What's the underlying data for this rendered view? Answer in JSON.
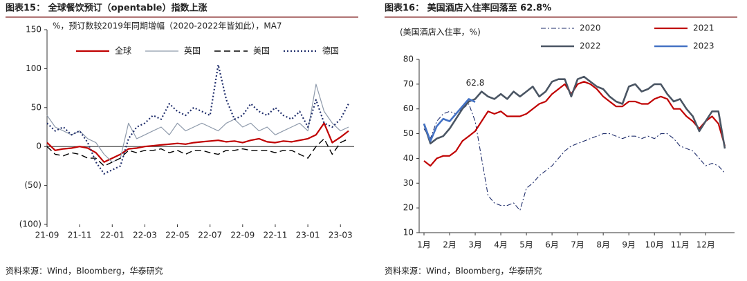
{
  "chart_data": [
    {
      "type": "line",
      "title": "图表15： 全球餐饮预订（opentable）指数上涨",
      "annotation": "%，预订数较2019年同期增幅（2020-2022年皆如此），MA7",
      "source": "资料来源：Wind，Bloomberg，华泰研究",
      "categories": [
        "21-09",
        null,
        null,
        null,
        "21-11",
        null,
        null,
        null,
        "22-01",
        null,
        null,
        null,
        "22-03",
        null,
        null,
        null,
        "22-05",
        null,
        null,
        null,
        "22-07",
        null,
        null,
        null,
        "22-09",
        null,
        null,
        null,
        "22-11",
        null,
        null,
        null,
        "23-01",
        null,
        null,
        null,
        "23-03",
        null
      ],
      "ylim": [
        -100,
        150
      ],
      "yticks": [
        {
          "value": -100,
          "label": "(100)"
        },
        {
          "value": -50,
          "label": "(50)"
        },
        0,
        50,
        100,
        150
      ],
      "legend": "top",
      "series": [
        {
          "name": "全球",
          "color": "#c00000",
          "style": "solid",
          "width": 2.2,
          "values": [
            5,
            -5,
            -3,
            -2,
            0,
            -2,
            -8,
            -20,
            -15,
            -10,
            -3,
            -2,
            0,
            1,
            2,
            3,
            4,
            3,
            5,
            6,
            7,
            8,
            6,
            7,
            5,
            8,
            10,
            6,
            5,
            7,
            6,
            8,
            10,
            15,
            30,
            5,
            12,
            20
          ]
        },
        {
          "name": "英国",
          "color": "#8e9aab",
          "style": "solid",
          "width": 1.2,
          "values": [
            40,
            25,
            20,
            15,
            20,
            10,
            5,
            -10,
            -20,
            -15,
            30,
            10,
            15,
            20,
            25,
            15,
            30,
            20,
            25,
            30,
            25,
            20,
            30,
            35,
            25,
            30,
            20,
            25,
            15,
            20,
            25,
            30,
            20,
            80,
            45,
            30,
            20,
            25
          ]
        },
        {
          "name": "美国",
          "color": "#000000",
          "style": "dashed",
          "width": 1.4,
          "values": [
            0,
            -10,
            -12,
            -8,
            -10,
            -15,
            -15,
            -25,
            -20,
            -15,
            -5,
            -8,
            -5,
            -5,
            -3,
            -8,
            -5,
            -10,
            -5,
            -5,
            -8,
            -10,
            -5,
            -5,
            -3,
            -5,
            -5,
            -5,
            -8,
            -5,
            -5,
            -10,
            -15,
            0,
            10,
            -10,
            5,
            10
          ]
        },
        {
          "name": "德国",
          "color": "#1f2d6b",
          "style": "dotted",
          "width": 2.2,
          "values": [
            30,
            20,
            25,
            15,
            20,
            5,
            -20,
            -35,
            -30,
            -25,
            10,
            25,
            30,
            40,
            35,
            55,
            45,
            40,
            50,
            45,
            40,
            105,
            60,
            35,
            40,
            55,
            45,
            40,
            50,
            40,
            35,
            45,
            25,
            60,
            30,
            25,
            35,
            55
          ]
        }
      ]
    },
    {
      "type": "line",
      "title": "图表16： 美国酒店入住率回落至 62.8%",
      "annotation": "(美国酒店入住率，%)",
      "source": "资料来源：Wind，Bloomberg，华泰研究",
      "categories": [
        "1月",
        null,
        null,
        null,
        "2月",
        null,
        null,
        null,
        "3月",
        null,
        null,
        null,
        "4月",
        null,
        null,
        null,
        "5月",
        null,
        null,
        null,
        "6月",
        null,
        null,
        null,
        "7月",
        null,
        null,
        null,
        "8月",
        null,
        null,
        null,
        "9月",
        null,
        null,
        null,
        "10月",
        null,
        null,
        null,
        "11月",
        null,
        null,
        null,
        "12月",
        null,
        null,
        null
      ],
      "ylim": [
        10,
        80
      ],
      "yticks": [
        10,
        20,
        30,
        40,
        50,
        60,
        70,
        80
      ],
      "legend": "grid",
      "series": [
        {
          "name": "2020",
          "color": "#1f2d6b",
          "style": "dashdot",
          "width": 1.1,
          "values": [
            52,
            48,
            55,
            58,
            59,
            58,
            60,
            62,
            55,
            40,
            25,
            22,
            21,
            21,
            22,
            19,
            28,
            30,
            33,
            35,
            37,
            40,
            43,
            45,
            46,
            47,
            48,
            49,
            50,
            50,
            49,
            48,
            49,
            49,
            48,
            49,
            48,
            50,
            50,
            48,
            45,
            44,
            43,
            40,
            37,
            38,
            37,
            34
          ]
        },
        {
          "name": "2021",
          "color": "#c00000",
          "style": "solid",
          "width": 2.2,
          "values": [
            39,
            37,
            40,
            41,
            41,
            43,
            47,
            49,
            51,
            55,
            59,
            58,
            59,
            57,
            57,
            57,
            58,
            60,
            62,
            63,
            66,
            68,
            70,
            66,
            70,
            71,
            70,
            68,
            65,
            63,
            61,
            61,
            63,
            63,
            62,
            62,
            64,
            65,
            64,
            60,
            60,
            57,
            55,
            52,
            55,
            57,
            54,
            45
          ]
        },
        {
          "name": "2022",
          "color": "#4a5563",
          "style": "solid",
          "width": 2.6,
          "values": [
            54,
            46,
            48,
            49,
            52,
            56,
            60,
            63,
            64,
            67,
            65,
            64,
            66,
            64,
            67,
            65,
            67,
            69,
            65,
            67,
            71,
            72,
            72,
            65,
            72,
            73,
            71,
            69,
            68,
            65,
            63,
            62,
            69,
            70,
            67,
            68,
            70,
            70,
            66,
            63,
            64,
            60,
            57,
            51,
            55,
            59,
            59,
            44
          ]
        },
        {
          "name": "2023",
          "color": "#4472c4",
          "style": "solid",
          "width": 2.6,
          "values": [
            54,
            47,
            53,
            56,
            55,
            58,
            61,
            64,
            62.8,
            null,
            null,
            null,
            null,
            null,
            null,
            null,
            null,
            null,
            null,
            null,
            null,
            null,
            null,
            null,
            null,
            null,
            null,
            null,
            null,
            null,
            null,
            null,
            null,
            null,
            null,
            null,
            null,
            null,
            null,
            null,
            null,
            null,
            null,
            null,
            null,
            null,
            null,
            null
          ],
          "label_index": 8
        }
      ]
    }
  ]
}
